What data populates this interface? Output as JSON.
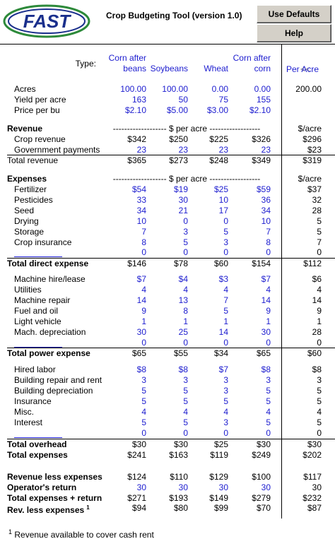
{
  "header": {
    "logo": "FAST",
    "title": "Crop Budgeting Tool (version 1.0)",
    "buttons": [
      "Use Defaults",
      "Help"
    ]
  },
  "table": {
    "type_label": "Type:",
    "columns": [
      "Corn after beans",
      "Soybeans",
      "Wheat",
      "Corn after corn"
    ],
    "per_acre_header": "Per Acre",
    "collapse": "<<",
    "rows": [
      {
        "label": "Acres",
        "values": [
          "100.00",
          "100.00",
          "0.00",
          "0.00"
        ],
        "per_acre": "200.00"
      },
      {
        "label": "Yield per acre",
        "values": [
          "163",
          "50",
          "75",
          "155"
        ]
      },
      {
        "label": "Price per bu",
        "values": [
          "$2.10",
          "$5.00",
          "$3.00",
          "$2.10"
        ]
      },
      {
        "label": "Revenue",
        "span": "------------------- $ per acre ------------------",
        "per_acre": "$/acre"
      },
      {
        "label": "Crop revenue",
        "values": [
          "$342",
          "$250",
          "$225",
          "$326"
        ],
        "per_acre": "$296"
      },
      {
        "label": "Government payments",
        "values": [
          "23",
          "23",
          "23",
          "23"
        ],
        "per_acre": "$23"
      },
      {
        "label": "Total revenue",
        "values": [
          "$365",
          "$273",
          "$248",
          "$349"
        ],
        "per_acre": "$319"
      },
      {
        "label": "Expenses",
        "span": "------------------- $ per acre ------------------",
        "per_acre": "$/acre"
      },
      {
        "label": "Fertilizer",
        "values": [
          "$54",
          "$19",
          "$25",
          "$59"
        ],
        "per_acre": "$37"
      },
      {
        "label": "Pesticides",
        "values": [
          "33",
          "30",
          "10",
          "36"
        ],
        "per_acre": "32"
      },
      {
        "label": "Seed",
        "values": [
          "34",
          "21",
          "17",
          "34"
        ],
        "per_acre": "28"
      },
      {
        "label": "Drying",
        "values": [
          "10",
          "0",
          "0",
          "10"
        ],
        "per_acre": "5"
      },
      {
        "label": "Storage",
        "values": [
          "7",
          "3",
          "5",
          "7"
        ],
        "per_acre": "5"
      },
      {
        "label": "Crop insurance",
        "values": [
          "8",
          "5",
          "3",
          "8"
        ],
        "per_acre": "7"
      },
      {
        "values": [
          "0",
          "0",
          "0",
          "0"
        ],
        "per_acre": "0"
      },
      {
        "label": "Total direct expense",
        "values": [
          "$146",
          "$78",
          "$60",
          "$154"
        ],
        "per_acre": "$112"
      },
      {
        "label": "Machine hire/lease",
        "values": [
          "$7",
          "$4",
          "$3",
          "$7"
        ],
        "per_acre": "$6"
      },
      {
        "label": "Utilities",
        "values": [
          "4",
          "4",
          "4",
          "4"
        ],
        "per_acre": "4"
      },
      {
        "label": "Machine repair",
        "values": [
          "14",
          "13",
          "7",
          "14"
        ],
        "per_acre": "14"
      },
      {
        "label": "Fuel and oil",
        "values": [
          "9",
          "8",
          "5",
          "9"
        ],
        "per_acre": "9"
      },
      {
        "label": "Light vehicle",
        "values": [
          "1",
          "1",
          "1",
          "1"
        ],
        "per_acre": "1"
      },
      {
        "label": "Mach. depreciation",
        "values": [
          "30",
          "25",
          "14",
          "30"
        ],
        "per_acre": "28"
      },
      {
        "values": [
          "0",
          "0",
          "0",
          "0"
        ],
        "per_acre": "0"
      },
      {
        "label": "Total power expense",
        "values": [
          "$65",
          "$55",
          "$34",
          "$65"
        ],
        "per_acre": "$60"
      },
      {
        "label": "Hired labor",
        "values": [
          "$8",
          "$8",
          "$7",
          "$8"
        ],
        "per_acre": "$8"
      },
      {
        "label": "Building repair and rent",
        "values": [
          "3",
          "3",
          "3",
          "3"
        ],
        "per_acre": "3"
      },
      {
        "label": "Building depreciation",
        "values": [
          "5",
          "5",
          "3",
          "5"
        ],
        "per_acre": "5"
      },
      {
        "label": "Insurance",
        "values": [
          "5",
          "5",
          "5",
          "5"
        ],
        "per_acre": "5"
      },
      {
        "label": "Misc.",
        "values": [
          "4",
          "4",
          "4",
          "4"
        ],
        "per_acre": "4"
      },
      {
        "label": "Interest",
        "values": [
          "5",
          "5",
          "3",
          "5"
        ],
        "per_acre": "5"
      },
      {
        "values": [
          "0",
          "0",
          "0",
          "0"
        ],
        "per_acre": "0"
      },
      {
        "label": "Total overhead",
        "values": [
          "$30",
          "$30",
          "$25",
          "$30"
        ],
        "per_acre": "$30"
      },
      {
        "label": "Total expenses",
        "values": [
          "$241",
          "$163",
          "$119",
          "$249"
        ],
        "per_acre": "$202"
      },
      {
        "label": "Revenue less expenses",
        "values": [
          "$124",
          "$110",
          "$129",
          "$100"
        ],
        "per_acre": "$117"
      },
      {
        "label": "Operator's return",
        "values": [
          "30",
          "30",
          "30",
          "30"
        ],
        "per_acre": "30"
      },
      {
        "label": "Total expenses + return",
        "values": [
          "$271",
          "$193",
          "$149",
          "$279"
        ],
        "per_acre": "$232"
      },
      {
        "label": "Rev. less expenses",
        "note": "1",
        "values": [
          "$94",
          "$80",
          "$99",
          "$70"
        ],
        "per_acre": "$87"
      }
    ]
  },
  "footnote": {
    "mark": "1",
    "text": "Revenue available to cover cash rent"
  }
}
